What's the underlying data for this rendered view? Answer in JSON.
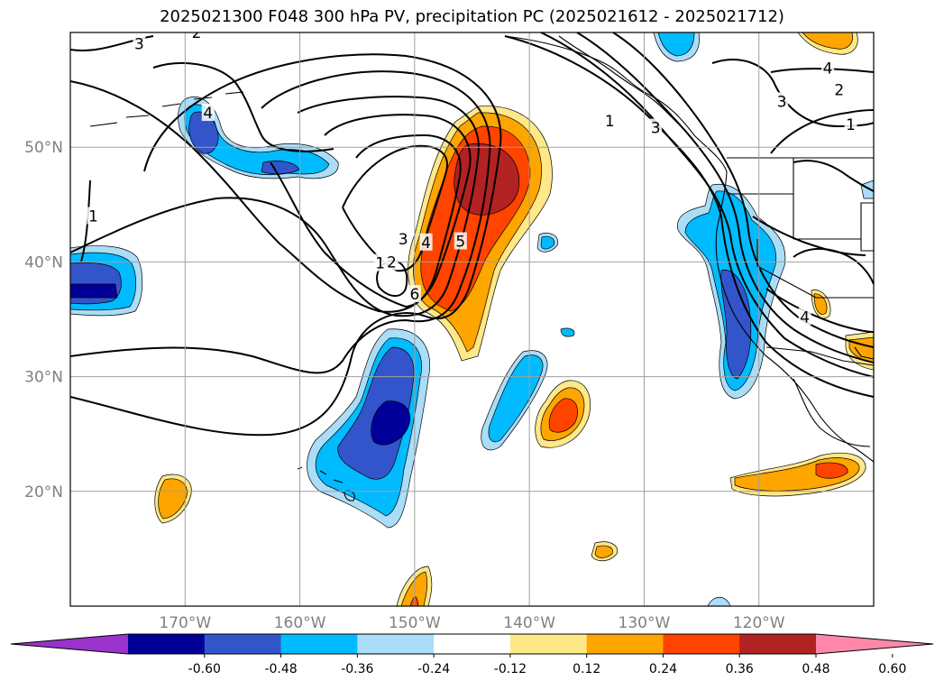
{
  "chart_data": {
    "type": "map",
    "title": "2025021300 F048 300 hPa PV, precipitation PC (2025021612 - 2025021712)",
    "map_extent": {
      "lon": [
        -180,
        -110
      ],
      "lat": [
        10,
        60
      ]
    },
    "grid": true,
    "lat_ticks": [
      {
        "lat": 50,
        "label": "50°N"
      },
      {
        "lat": 40,
        "label": "40°N"
      },
      {
        "lat": 30,
        "label": "30°N"
      },
      {
        "lat": 20,
        "label": "20°N"
      }
    ],
    "lon_ticks": [
      {
        "lon": -170,
        "label": "170°W"
      },
      {
        "lon": -160,
        "label": "160°W"
      },
      {
        "lon": -150,
        "label": "150°W"
      },
      {
        "lon": -140,
        "label": "140°W"
      },
      {
        "lon": -130,
        "label": "130°W"
      },
      {
        "lon": -120,
        "label": "120°W"
      }
    ],
    "colorbar": {
      "levels": [
        "-0.60",
        "-0.48",
        "-0.36",
        "-0.24",
        "-0.12",
        "0.12",
        "0.24",
        "0.36",
        "0.48",
        "0.60"
      ],
      "colors": [
        "#9933cc",
        "#000099",
        "#3355cc",
        "#00bbff",
        "#aaddf8",
        "#ffffff",
        "#ffe888",
        "#ffa500",
        "#ff4400",
        "#b22222",
        "#ff88aa"
      ],
      "extend": "both"
    },
    "pv_contour_labels": [
      {
        "text": "3",
        "lon": -174,
        "lat": 59
      },
      {
        "text": "2",
        "lon": -169,
        "lat": 60
      },
      {
        "text": "4",
        "lon": -168,
        "lat": 53
      },
      {
        "text": "1",
        "lon": -178,
        "lat": 44
      },
      {
        "text": "3",
        "lon": -151,
        "lat": 42
      },
      {
        "text": "4",
        "lon": -149,
        "lat": 41.7
      },
      {
        "text": "1",
        "lon": -153,
        "lat": 39.9
      },
      {
        "text": "2",
        "lon": -152,
        "lat": 40
      },
      {
        "text": "5",
        "lon": -146,
        "lat": 41.8
      },
      {
        "text": "6",
        "lon": -150,
        "lat": 37.2
      },
      {
        "text": "1",
        "lon": -133,
        "lat": 52.3
      },
      {
        "text": "3",
        "lon": -129,
        "lat": 51.7
      },
      {
        "text": "3",
        "lon": -118,
        "lat": 54
      },
      {
        "text": "4",
        "lon": -114,
        "lat": 56.9
      },
      {
        "text": "2",
        "lon": -113,
        "lat": 55
      },
      {
        "text": "1",
        "lon": -112,
        "lat": 52
      },
      {
        "text": "4",
        "lon": -116,
        "lat": 35.2
      }
    ]
  }
}
